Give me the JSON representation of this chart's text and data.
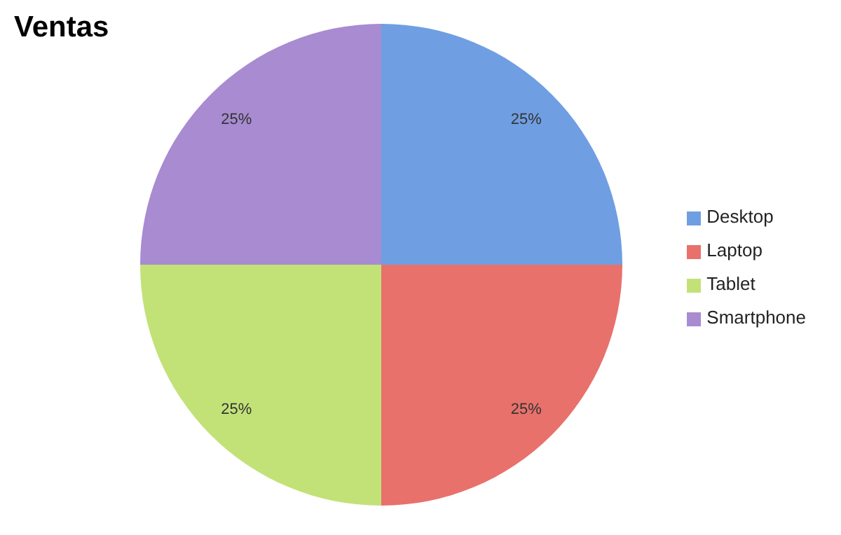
{
  "chart_data": {
    "type": "pie",
    "title": "Ventas",
    "categories": [
      "Desktop",
      "Laptop",
      "Tablet",
      "Smartphone"
    ],
    "values": [
      25,
      25,
      25,
      25
    ],
    "colors": [
      "#6f9fe2",
      "#e8716b",
      "#c2e278",
      "#a88bd0"
    ],
    "value_labels": [
      "25%",
      "25%",
      "25%",
      "25%"
    ],
    "legend": "right"
  }
}
